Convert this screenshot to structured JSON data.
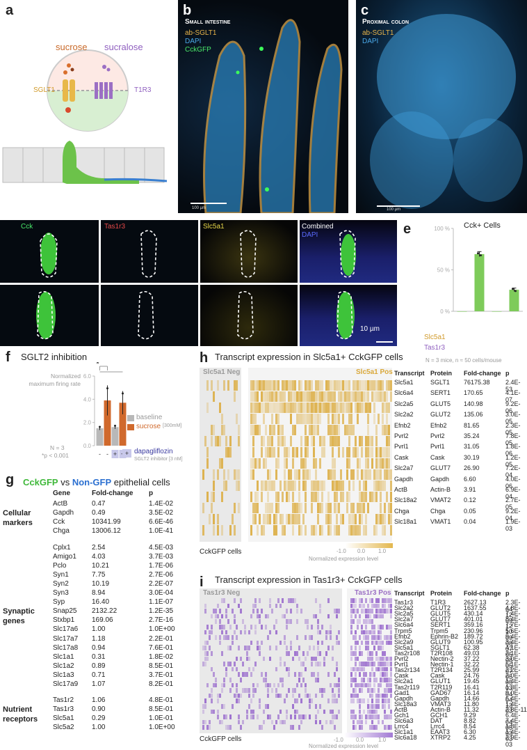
{
  "panels": {
    "a": {
      "letter": "a",
      "sucrose": "sucrose",
      "sucralose": "sucralose",
      "sglt1": "SGLT1",
      "t1r3": "T1R3"
    },
    "b": {
      "letter": "b",
      "title": "Small intestine",
      "legend": [
        "ab-SGLT1",
        "DAPI",
        "CckGFP"
      ],
      "scale": "100 µm"
    },
    "c": {
      "letter": "c",
      "title": "Proximal colon",
      "legend": [
        "ab-SGLT1",
        "DAPI"
      ],
      "scale": "100 µm"
    },
    "d": {
      "letter": "d",
      "channels": [
        "Cck",
        "Tas1r3",
        "Slc5a1",
        "Combined"
      ],
      "combined_sub": "DAPI",
      "scale": "10 µm"
    },
    "e": {
      "letter": "e",
      "title": "Cck+ Cells",
      "row_labels": [
        "Slc5a1",
        "Tas1r3"
      ],
      "slc5a1_signs": [
        "−",
        "+",
        "−",
        "+"
      ],
      "tas1r3_signs": [
        "−",
        "−",
        "+",
        "+"
      ],
      "footnote": "N = 3 mice, n ≈ 50 cells/mouse"
    },
    "f": {
      "letter": "f",
      "title": "SGLT2 inhibition",
      "ylabel": "Normalized maximum firing rate",
      "legend_baseline": "baseline",
      "legend_sucrose": "sucrose",
      "legend_sucrose_conc": "[300mM]",
      "star": "*",
      "n_note": "N = 3",
      "p_note": "*p < 0.001",
      "dapa_signs": [
        "-",
        "-",
        "+",
        "+"
      ],
      "dapa_label": "dapagliflozin",
      "dapa_sub": "SGLT2 inhibitor [3 nM]"
    },
    "g": {
      "letter": "g",
      "title_a": "CckGFP",
      "title_vs": " vs ",
      "title_b": "Non-GFP",
      "title_c": " epithelial cells",
      "headers": [
        "Gene",
        "Fold-change",
        "p"
      ],
      "groups": [
        {
          "label": [
            "Cellular",
            "markers"
          ],
          "rows": [
            [
              "ActB",
              "0.47",
              "1.4E-02"
            ],
            [
              "Gapdh",
              "0.49",
              "3.5E-02"
            ],
            [
              "Cck",
              "10341.99",
              "6.6E-46"
            ],
            [
              "Chga",
              "13006.12",
              "1.0E-41"
            ]
          ]
        },
        {
          "label": [
            "Synaptic",
            "genes"
          ],
          "rows": [
            [
              "Cplx1",
              "2.54",
              "4.5E-03"
            ],
            [
              "Amigo1",
              "4.03",
              "3.7E-03"
            ],
            [
              "Pclo",
              "10.21",
              "1.7E-06"
            ],
            [
              "Syn1",
              "7.75",
              "2.7E-06"
            ],
            [
              "Syn2",
              "10.19",
              "2.2E-07"
            ],
            [
              "Syn3",
              "8.94",
              "3.0E-04"
            ],
            [
              "Syp",
              "16.40",
              "1.1E-07"
            ],
            [
              "Snap25",
              "2132.22",
              "1.2E-35"
            ],
            [
              "Stxbp1",
              "169.06",
              "2.7E-16"
            ],
            [
              "Slc17a6",
              "1.00",
              "1.0E+00"
            ],
            [
              "Slc17a7",
              "1.18",
              "2.2E-01"
            ],
            [
              "Slc17a8",
              "0.94",
              "7.6E-01"
            ],
            [
              "Slc1a1",
              "0.31",
              "1.8E-02"
            ],
            [
              "Slc1a2",
              "0.89",
              "8.5E-01"
            ],
            [
              "Slc1a3",
              "0.71",
              "3.7E-01"
            ],
            [
              "Slc17a9",
              "1.07",
              "8.2E-01"
            ]
          ]
        },
        {
          "label": [
            "Nutrient",
            "receptors"
          ],
          "rows": [
            [
              "Tas1r2",
              "1.06",
              "4.8E-01"
            ],
            [
              "Tas1r3",
              "0.90",
              "8.5E-01"
            ],
            [
              "Slc5a1",
              "0.29",
              "1.0E-01"
            ],
            [
              "Slc5a2",
              "1.00",
              "1.0E+00"
            ]
          ]
        }
      ]
    },
    "h": {
      "letter": "h",
      "title": "Transcript expression in Slc5a1+ CckGFP cells",
      "neg_label": "Slc5a1 Neg",
      "pos_label": "Slc5a1 Pos",
      "cells_label": "CckGFP cells",
      "scale_ticks": [
        "-1.0",
        "0.0",
        "1.0"
      ],
      "scale_label": "Normalized expression level",
      "headers": [
        "Transcript",
        "Protein",
        "Fold-change",
        "p"
      ],
      "rows": [
        [
          "Slc5a1",
          "SGLT1",
          "76175.38",
          "2.4E-53"
        ],
        [
          "Slc6a4",
          "SERT1",
          "170.65",
          "4.1E-07"
        ],
        [
          "Slc2a5",
          "GLUT5",
          "140.98",
          "9.2E-06"
        ],
        [
          "Slc2a2",
          "GLUT2",
          "135.06",
          "3.0E-05"
        ],
        [
          "Efnb2",
          "Efnb2",
          "81.65",
          "2.3E-05"
        ],
        [
          "Pvrl2",
          "Pvrl2",
          "35.24",
          "7.8E-05"
        ],
        [
          "Pvrl1",
          "Pvrl1",
          "31.05",
          "1.8E-06"
        ],
        [
          "Cask",
          "Cask",
          "30.19",
          "1.2E-05"
        ],
        [
          "Slc2a7",
          "GLUT7",
          "26.90",
          "7.2E-04"
        ],
        [
          "Gapdh",
          "Gapdh",
          "6.60",
          "4.0E-06"
        ],
        [
          "ActB",
          "Actin-B",
          "3.91",
          "6.9E-04"
        ],
        [
          "Slc18a2",
          "VMAT2",
          "0.12",
          "2.7E-05"
        ],
        [
          "Chga",
          "Chga",
          "0.05",
          "9.2E-04"
        ],
        [
          "Slc18a1",
          "VMAT1",
          "0.04",
          "1.9E-03"
        ]
      ]
    },
    "i": {
      "letter": "i",
      "title": "Transcript expression in Tas1r3+ CckGFP cells",
      "neg_label": "Tas1r3 Neg",
      "pos_label": "Tas1r3 Pos",
      "cells_label": "CckGFP cells",
      "scale_ticks": [
        "-1.0",
        "0.0",
        "1.0"
      ],
      "scale_label": "Normalized expression level",
      "headers": [
        "Transcript",
        "Protein",
        "Fold-change",
        "p"
      ],
      "rows": [
        [
          "Tas1r3",
          "T1R3",
          "2627.13",
          "2.3E-64"
        ],
        [
          "Slc2a2",
          "GLUT2",
          "1637.55",
          "4.8E-12"
        ],
        [
          "Slc2a5",
          "GLUT5",
          "430.14",
          "7.4E-09"
        ],
        [
          "Slc2a7",
          "GLUT7",
          "401.01",
          "8.4E-12"
        ],
        [
          "Slc6a4",
          "SERT1",
          "359.16",
          "7.7E-10"
        ],
        [
          "Trpm5",
          "Trpm5",
          "230.96",
          "5.6E-09"
        ],
        [
          "Efnb2",
          "Ephrin-B2",
          "189.72",
          "9.4E-08"
        ],
        [
          "Slc2a9",
          "GLUT9",
          "100.95",
          "3.4E-07"
        ],
        [
          "Slc5a1",
          "SGLT1",
          "62.38",
          "4.1E-05"
        ],
        [
          "Tas2r108",
          "T2R108",
          "49.03",
          "2.1E-08"
        ],
        [
          "Pvrl2",
          "Nectin-2",
          "37.22",
          "3.0E-05"
        ],
        [
          "Pvrl1",
          "Nectin-1",
          "32.22",
          "5.1E-07"
        ],
        [
          "Tas2r134",
          "T2R134",
          "25.99",
          "2.2E-05"
        ],
        [
          "Cask",
          "Cask",
          "24.76",
          "2.0E-05"
        ],
        [
          "Slc2a1",
          "GLUT1",
          "19.45",
          "1.4E-03"
        ],
        [
          "Tas2r119",
          "T2R119",
          "16.41",
          "1.3E-04"
        ],
        [
          "Gad1",
          "GAD67",
          "16.14",
          "9.0E-04"
        ],
        [
          "Gapdh",
          "Gapdh",
          "14.66",
          "6.4E-13"
        ],
        [
          "Slc18a3",
          "VMAT3",
          "11.80",
          "1.4E-03"
        ],
        [
          "ActB",
          "Actin-B",
          "11.32",
          "2.8E-11"
        ],
        [
          "Gch1",
          "GCH1",
          "9.29",
          "6.4E-04"
        ],
        [
          "Slc6a3",
          "DAT",
          "8.82",
          "7.4E-05"
        ],
        [
          "Lrrc4",
          "Lrrc4",
          "8.54",
          "1.8E-03"
        ],
        [
          "Slc1a1",
          "EAAT3",
          "6.30",
          "1.4E-03"
        ],
        [
          "Slc6a18",
          "XTRP2",
          "4.25",
          "2.9E-03"
        ]
      ]
    }
  },
  "chart_data": [
    {
      "type": "bar",
      "title": "Cck+ Cells",
      "categories": [
        "Slc5a1− Tas1r3−",
        "Slc5a1+ Tas1r3−",
        "Slc5a1− Tas1r3+",
        "Slc5a1+ Tas1r3+"
      ],
      "values": [
        0,
        69,
        0,
        26
      ],
      "errors": [
        0,
        3,
        0,
        2
      ],
      "ylim": [
        0,
        100
      ],
      "yticks": [
        "0 %",
        "50 %",
        "100 %"
      ],
      "color": "#7ecb5a"
    },
    {
      "type": "bar",
      "title": "SGLT2 inhibition",
      "categories": [
        "baseline",
        "sucrose",
        "baseline + dapagliflozin",
        "sucrose + dapagliflozin"
      ],
      "values": [
        1.5,
        3.9,
        1.6,
        3.7
      ],
      "errors": [
        0.15,
        1.3,
        0.15,
        1.0
      ],
      "ylim": [
        0,
        6
      ],
      "yticks": [
        "0.0",
        "2.0",
        "4.0",
        "6.0"
      ],
      "colors": {
        "baseline": "#b8b8b8",
        "sucrose": "#d0692c",
        "dapagliflozin": "#3a3aa0"
      }
    }
  ]
}
